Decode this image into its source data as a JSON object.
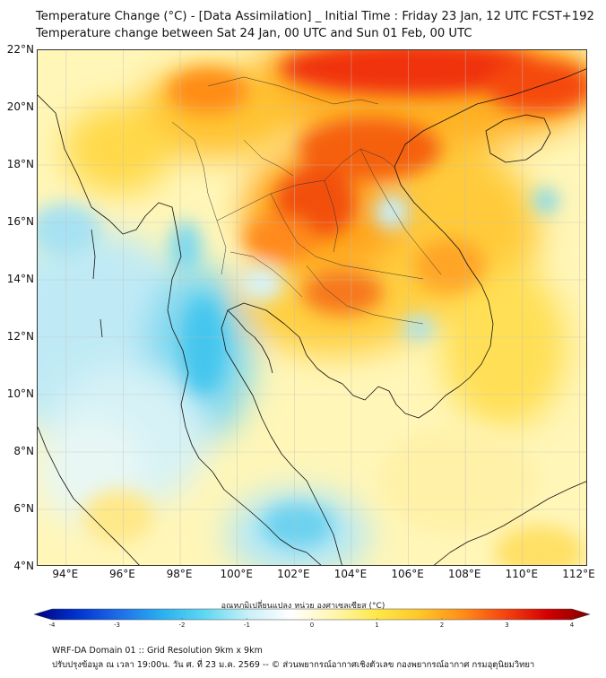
{
  "header": {
    "title": "Temperature Change (°C) - [Data Assimilation] _ Initial Time : Friday 23 Jan, 12 UTC FCST+192",
    "subtitle": "Temperature change between Sat 24 Jan, 00 UTC and Sun 01 Feb, 00 UTC"
  },
  "map": {
    "lat_labels": [
      "22°N",
      "20°N",
      "18°N",
      "16°N",
      "14°N",
      "12°N",
      "10°N",
      "8°N",
      "6°N",
      "4°N"
    ],
    "lon_labels": [
      "94°E",
      "96°E",
      "98°E",
      "100°E",
      "102°E",
      "104°E",
      "106°E",
      "108°E",
      "110°E",
      "112°E"
    ],
    "lat_range": [
      4,
      22
    ],
    "lon_range": [
      93,
      112.3
    ]
  },
  "colorbar": {
    "title": "อุณหภูมิเปลี่ยนแปลง หน่วย องศาเซลเซียส (°C)",
    "ticks": [
      "-4",
      "-3",
      "-2",
      "-1",
      "0",
      "1",
      "2",
      "3",
      "4"
    ],
    "min": -4,
    "max": 4,
    "colors": [
      "#00007f",
      "#0033cc",
      "#1e6ee8",
      "#2ab0f0",
      "#5fd8f2",
      "#c8f0f6",
      "#ffffff",
      "#fff6b0",
      "#ffe84a",
      "#ffc72a",
      "#ff8f1a",
      "#f54510",
      "#d40000",
      "#7f0000"
    ]
  },
  "footer": {
    "line1": "WRF-DA Domain 01 :: Grid Resolution 9km x 9km",
    "line2": "ปรับปรุงข้อมูล ณ เวลา 19:00น. วัน ศ. ที่ 23 ม.ค. 2569 -- © ส่วนพยากรณ์อากาศเชิงตัวเลข กองพยากรณ์อากาศ กรมอุตุนิยมวิทยา"
  }
}
